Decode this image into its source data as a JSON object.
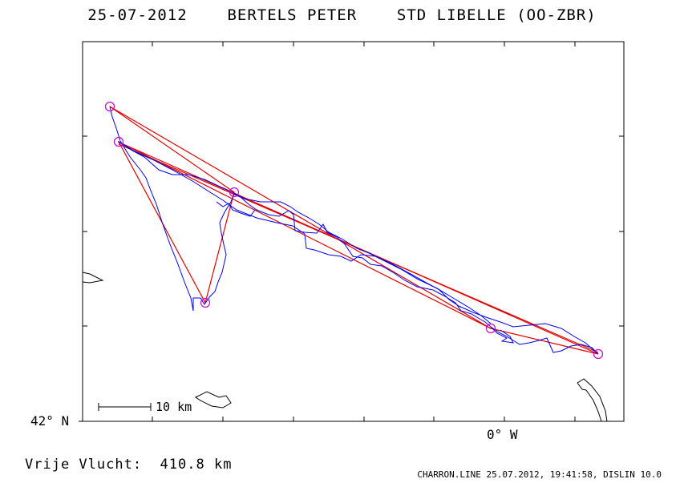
{
  "header": {
    "date": "25-07-2012",
    "pilot": "BERTELS PETER",
    "glider": "STD LIBELLE (OO-ZBR)"
  },
  "axes": {
    "lat_label": "42° N",
    "lon_label": "0° W"
  },
  "scale": {
    "label": "10 km"
  },
  "summary": {
    "label": "Vrije Vlucht:",
    "distance": "410.8 km"
  },
  "footer": {
    "text": "CHARRON.LINE 25.07.2012, 19:41:58, DISLIN 10.0"
  },
  "colors": {
    "track": "#0000ff",
    "task": "#ff0000",
    "turnpoint": "#cc00cc",
    "frame": "#000000"
  },
  "map_features": {
    "turnpoints": 6,
    "track_color_name": "blue",
    "task_color_name": "red"
  }
}
